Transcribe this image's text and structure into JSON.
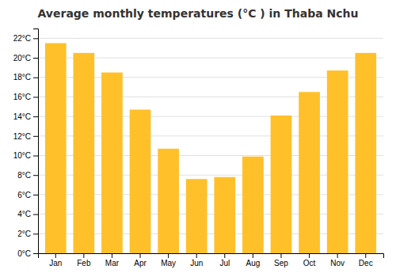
{
  "chart_data": {
    "type": "bar",
    "title": "Average monthly temperatures (°C ) in Thaba Nchu",
    "categories": [
      "Jan",
      "Feb",
      "Mar",
      "Apr",
      "May",
      "Jun",
      "Jul",
      "Aug",
      "Sep",
      "Oct",
      "Nov",
      "Dec"
    ],
    "values": [
      21.5,
      20.5,
      18.5,
      14.7,
      10.7,
      7.6,
      7.8,
      9.9,
      14.1,
      16.5,
      18.7,
      20.5
    ],
    "color": "#FFC02A",
    "ylim": [
      0,
      23
    ],
    "yticks": [
      {
        "value": 0,
        "label": "0°C"
      },
      {
        "value": 2,
        "label": "2°C"
      },
      {
        "value": 4,
        "label": "4°C"
      },
      {
        "value": 6,
        "label": "6°C"
      },
      {
        "value": 8,
        "label": "8°C"
      },
      {
        "value": 10,
        "label": "10°C"
      },
      {
        "value": 12,
        "label": "12°C"
      },
      {
        "value": 14,
        "label": "14°C"
      },
      {
        "value": 16,
        "label": "16°C"
      },
      {
        "value": 18,
        "label": "18°C"
      },
      {
        "value": 20,
        "label": "20°C"
      },
      {
        "value": 22,
        "label": "22°C"
      }
    ],
    "grid": true
  }
}
